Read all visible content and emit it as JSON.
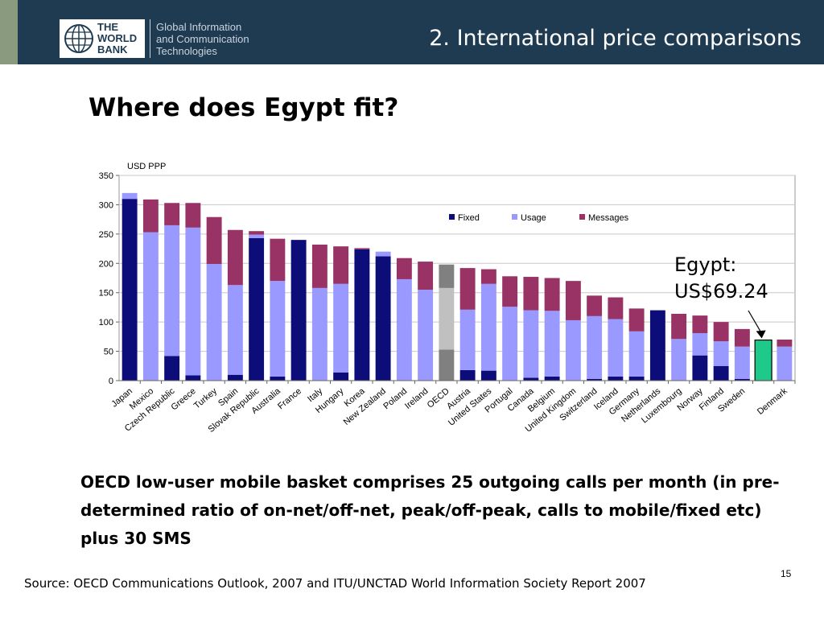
{
  "header": {
    "logo_line1": "THE",
    "logo_line2": "WORLD",
    "logo_line3": "BANK",
    "unit_line1": "Global Information",
    "unit_line2": "and Communication",
    "unit_line3": "Technologies",
    "title": "2. International price comparisons"
  },
  "slide": {
    "question": "Where does Egypt fit?",
    "annotation_line1": "Egypt:",
    "annotation_line2": "US$69.24",
    "description": "OECD low-user mobile basket comprises 25 outgoing calls per month (in pre-determined ratio of on-net/off-net, peak/off-peak, calls to mobile/fixed etc) plus 30 SMS",
    "source": "Source: OECD Communications Outlook, 2007 and ITU/UNCTAD World Information Society Report 2007",
    "page_number": "15"
  },
  "colors": {
    "header_bg": "#1f3b52",
    "fixed": "#0d0d7a",
    "usage": "#9999ff",
    "messages": "#993366",
    "oecd_fixed": "#808080",
    "oecd_usage": "#c0c0c0",
    "egypt": "#1fc98a"
  },
  "chart_data": {
    "type": "bar",
    "stacked": true,
    "ylabel": "USD PPP",
    "ylim": [
      0,
      350
    ],
    "yticks": [
      0,
      50,
      100,
      150,
      200,
      250,
      300,
      350
    ],
    "grid": true,
    "legend_position": "top-right",
    "categories": [
      "Japan",
      "Mexico",
      "Czech Republic",
      "Greece",
      "Turkey",
      "Spain",
      "Slovak Republic",
      "Australia",
      "France",
      "Italy",
      "Hungary",
      "Korea",
      "New Zealand",
      "Poland",
      "Ireland",
      "OECD",
      "Austria",
      "United States",
      "Portugal",
      "Canada",
      "Belgium",
      "United Kingdom",
      "Switzerland",
      "Iceland",
      "Germany",
      "Netherlands",
      "Luxembourg",
      "Norway",
      "Finland",
      "Sweden",
      "Egypt",
      "Denmark"
    ],
    "series": [
      {
        "name": "Fixed",
        "values": [
          310,
          0,
          42,
          9,
          0,
          10,
          243,
          7,
          240,
          0,
          14,
          224,
          212,
          0,
          0,
          53,
          18,
          17,
          0,
          5,
          7,
          0,
          3,
          7,
          7,
          120,
          0,
          43,
          25,
          3,
          0,
          0
        ]
      },
      {
        "name": "Usage",
        "values": [
          10,
          253,
          223,
          252,
          199,
          153,
          6,
          163,
          0,
          158,
          151,
          0,
          8,
          173,
          155,
          105,
          103,
          148,
          126,
          115,
          112,
          103,
          107,
          98,
          77,
          0,
          71,
          38,
          42,
          55,
          0,
          58
        ]
      },
      {
        "name": "Messages",
        "values": [
          0,
          56,
          38,
          42,
          80,
          94,
          6,
          72,
          0,
          74,
          64,
          2,
          0,
          36,
          48,
          40,
          71,
          25,
          52,
          57,
          56,
          67,
          35,
          37,
          39,
          0,
          43,
          30,
          33,
          30,
          0,
          12
        ]
      }
    ],
    "highlight": {
      "category": "Egypt",
      "total": 69.24
    }
  }
}
